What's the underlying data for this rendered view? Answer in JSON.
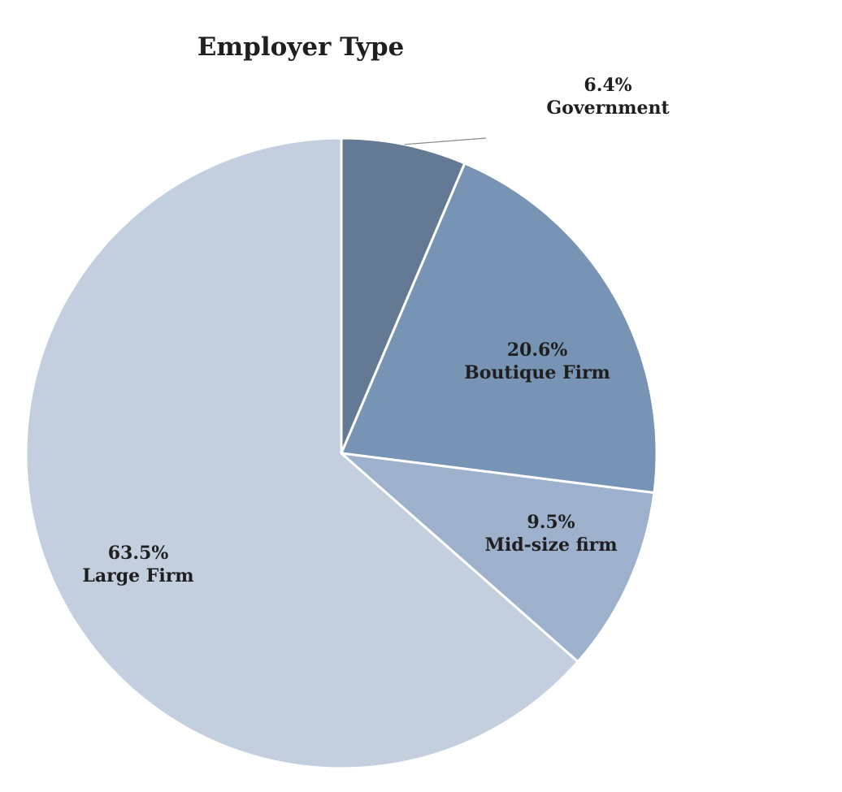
{
  "chart_data": {
    "type": "pie",
    "title": "Employer Type",
    "start_angle_deg": 0,
    "direction": "clockwise",
    "slices": [
      {
        "name": "Government",
        "value": 6.4,
        "label": "6.4%",
        "color": "#647993"
      },
      {
        "name": "Boutique Firm",
        "value": 20.6,
        "label": "20.6%",
        "color": "#7794b4"
      },
      {
        "name": "Mid-size firm",
        "value": 9.5,
        "label": "9.5%",
        "color": "#9db0cc"
      },
      {
        "name": "Large Firm",
        "value": 63.5,
        "label": "63.5%",
        "color": "#c3cfdf"
      }
    ]
  }
}
